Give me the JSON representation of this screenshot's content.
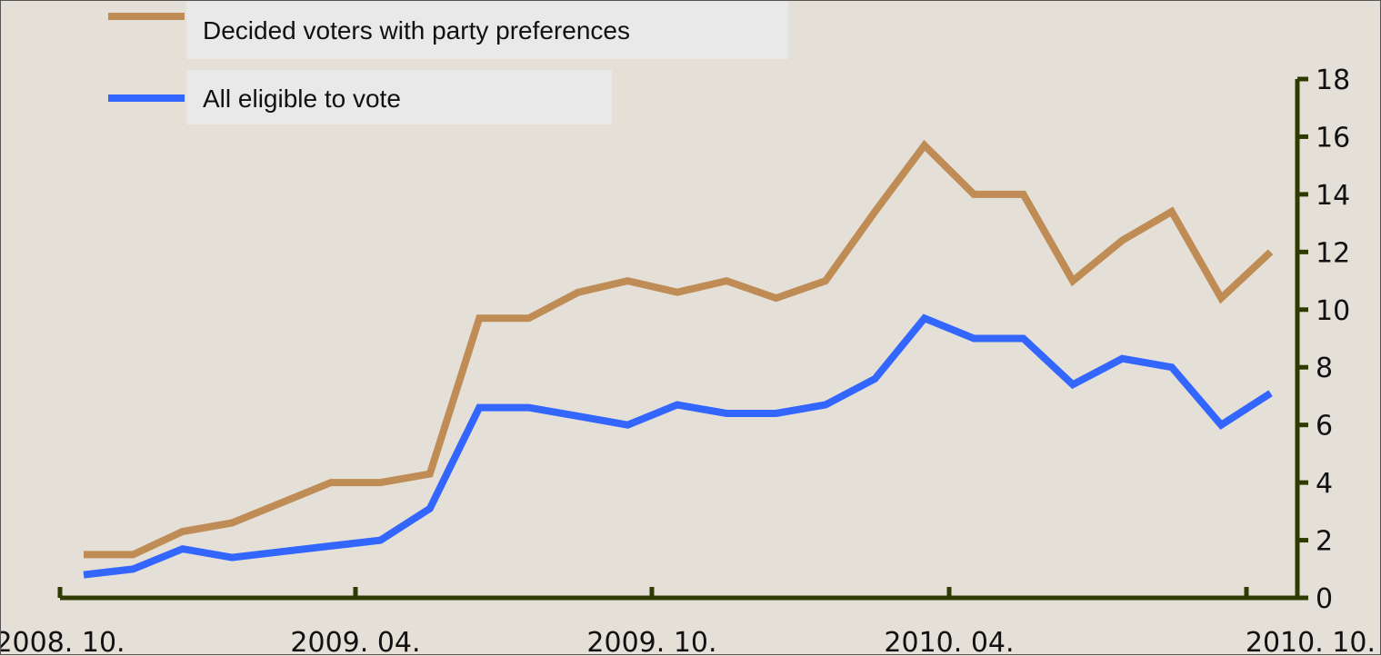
{
  "chart_data": {
    "type": "line",
    "x": [
      "2008.10",
      "2008.11",
      "2008.12",
      "2009.01",
      "2009.02",
      "2009.03",
      "2009.04",
      "2009.05",
      "2009.06",
      "2009.07",
      "2009.08",
      "2009.09",
      "2009.10",
      "2009.11",
      "2009.12",
      "2010.01",
      "2010.02",
      "2010.03",
      "2010.04",
      "2010.05",
      "2010.06",
      "2010.07",
      "2010.08",
      "2010.09",
      "2010.10"
    ],
    "series": [
      {
        "name": "Decided voters with party preferences",
        "color": "#c08c56",
        "values": [
          1.5,
          1.5,
          2.3,
          2.6,
          3.3,
          4.0,
          4.0,
          4.3,
          9.7,
          9.7,
          10.6,
          11.0,
          10.6,
          11.0,
          10.4,
          11.0,
          13.4,
          15.7,
          14.0,
          14.0,
          11.0,
          12.4,
          13.4,
          10.4,
          12.0
        ]
      },
      {
        "name": "All eligible to vote",
        "color": "#3366ff",
        "values": [
          0.8,
          1.0,
          1.7,
          1.4,
          1.6,
          1.8,
          2.0,
          3.1,
          6.6,
          6.6,
          6.3,
          6.0,
          6.7,
          6.4,
          6.4,
          6.7,
          7.6,
          9.7,
          9.0,
          9.0,
          7.4,
          8.3,
          8.0,
          6.0,
          7.1
        ]
      }
    ],
    "x_tick_labels": [
      "2008. 10.",
      "2009. 04.",
      "2009. 10.",
      "2010. 04.",
      "2010. 10."
    ],
    "y_ticks": [
      "0",
      "2",
      "4",
      "6",
      "8",
      "10",
      "12",
      "14",
      "16",
      "18"
    ],
    "ylim": [
      0,
      18
    ],
    "y_axis_side": "right",
    "grid": false,
    "legend_position": "top-left",
    "background": "#e4e0d8",
    "axis_color": "#2f3a00"
  }
}
